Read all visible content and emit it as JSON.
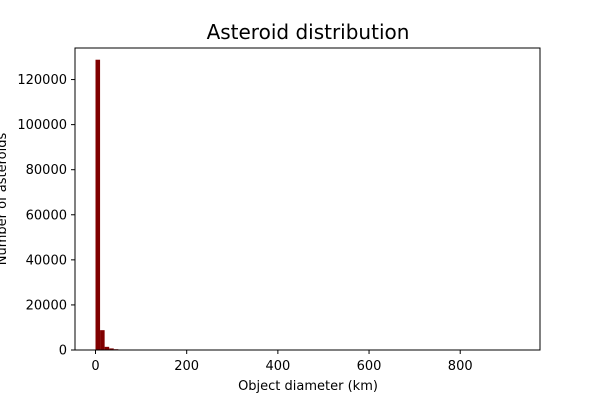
{
  "chart_data": {
    "type": "bar",
    "title": "Asteroid distribution",
    "xlabel": "Object diameter (km)",
    "ylabel": "Number of asteroids",
    "xlim": [
      -45,
      975
    ],
    "ylim": [
      0,
      134000
    ],
    "xticks": [
      0,
      200,
      400,
      600,
      800
    ],
    "yticks": [
      0,
      20000,
      40000,
      60000,
      80000,
      100000,
      120000
    ],
    "bin_width": 10,
    "bins": [
      {
        "x0": 0,
        "x1": 10,
        "count": 128800
      },
      {
        "x0": 10,
        "x1": 20,
        "count": 8800
      },
      {
        "x0": 20,
        "x1": 30,
        "count": 1400
      },
      {
        "x0": 30,
        "x1": 40,
        "count": 700
      },
      {
        "x0": 40,
        "x1": 50,
        "count": 350
      },
      {
        "x0": 50,
        "x1": 60,
        "count": 150
      },
      {
        "x0": 60,
        "x1": 70,
        "count": 80
      }
    ],
    "bar_color": "#800000",
    "grid": false,
    "legend": "none"
  }
}
